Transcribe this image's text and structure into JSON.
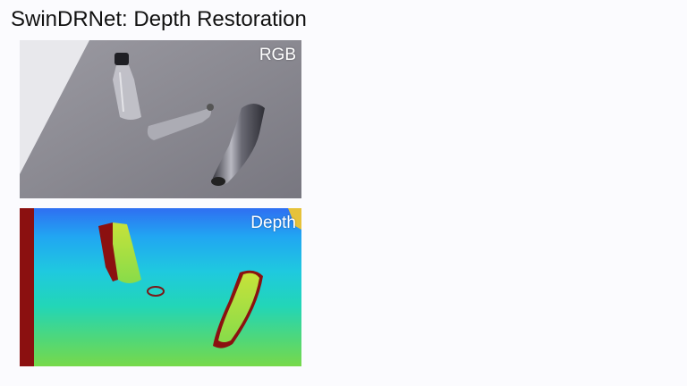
{
  "title": "SwinDRNet: Depth Restoration",
  "panels": {
    "rgb": {
      "label": "RGB"
    },
    "depth": {
      "label": "Depth"
    }
  },
  "colors": {
    "background": "#fbfbfe",
    "table_gray": "#85848d",
    "depth_near": "#6fd84a",
    "depth_far": "#2e7bf0",
    "invalid_depth": "#8b1010"
  }
}
